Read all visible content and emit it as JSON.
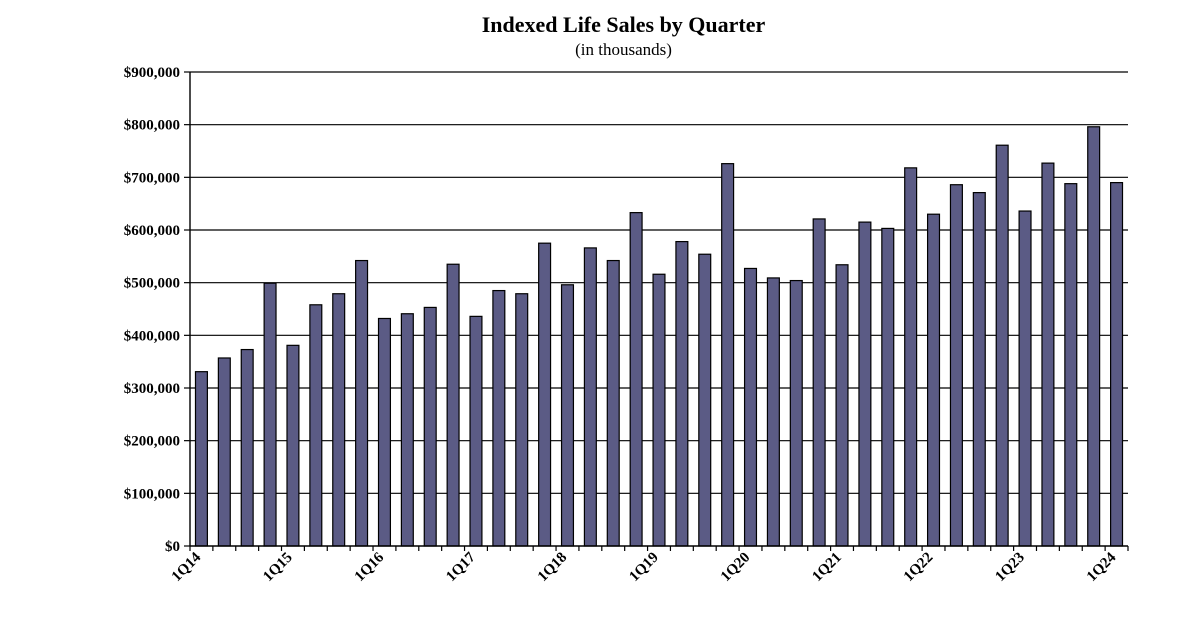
{
  "chart_data": {
    "type": "bar",
    "title": "Indexed Life Sales by Quarter",
    "subtitle": "(in thousands)",
    "xlabel": "",
    "ylabel": "",
    "ylim": [
      0,
      900000
    ],
    "grid": true,
    "y_ticks": [
      {
        "value": 0,
        "label": "$0"
      },
      {
        "value": 100000,
        "label": "$100,000"
      },
      {
        "value": 200000,
        "label": "$200,000"
      },
      {
        "value": 300000,
        "label": "$300,000"
      },
      {
        "value": 400000,
        "label": "$400,000"
      },
      {
        "value": 500000,
        "label": "$500,000"
      },
      {
        "value": 600000,
        "label": "$600,000"
      },
      {
        "value": 700000,
        "label": "$700,000"
      },
      {
        "value": 800000,
        "label": "$800,000"
      },
      {
        "value": 900000,
        "label": "$900,000"
      }
    ],
    "x_tick_labels": [
      {
        "index": 0,
        "label": "1Q14"
      },
      {
        "index": 4,
        "label": "1Q15"
      },
      {
        "index": 8,
        "label": "1Q16"
      },
      {
        "index": 12,
        "label": "1Q17"
      },
      {
        "index": 16,
        "label": "1Q18"
      },
      {
        "index": 20,
        "label": "1Q19"
      },
      {
        "index": 24,
        "label": "1Q20"
      },
      {
        "index": 28,
        "label": "1Q21"
      },
      {
        "index": 32,
        "label": "1Q22"
      },
      {
        "index": 36,
        "label": "1Q23"
      },
      {
        "index": 40,
        "label": "1Q24"
      }
    ],
    "values": [
      331000,
      357000,
      373000,
      499000,
      381000,
      458000,
      479000,
      542000,
      432000,
      441000,
      453000,
      535000,
      436000,
      485000,
      479000,
      575000,
      496000,
      566000,
      542000,
      633000,
      516000,
      578000,
      554000,
      726000,
      527000,
      509000,
      504000,
      621000,
      534000,
      615000,
      603000,
      718000,
      630000,
      686000,
      671000,
      761000,
      636000,
      727000,
      688000,
      796000,
      690000
    ],
    "colors": {
      "bar_fill": "#5b5b85",
      "bar_stroke": "#000000",
      "grid": "#000000"
    }
  }
}
